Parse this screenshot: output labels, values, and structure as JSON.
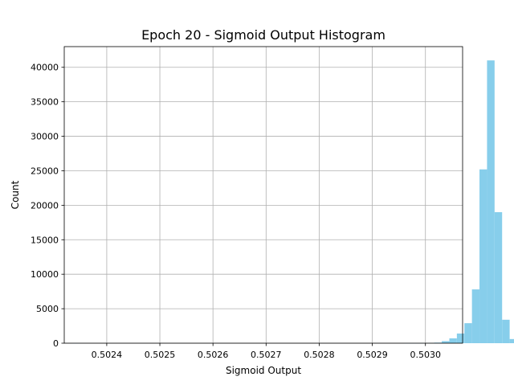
{
  "chart_data": {
    "type": "bar",
    "title": "Epoch 20 - Sigmoid Output Histogram",
    "xlabel": "Sigmoid Output",
    "ylabel": "Count",
    "xlim": [
      0.50232,
      0.50307
    ],
    "ylim": [
      0,
      43000
    ],
    "xticks": [
      0.5024,
      0.5025,
      0.5026,
      0.5027,
      0.5028,
      0.5029,
      0.503
    ],
    "xtick_labels": [
      "0.5024",
      "0.5025",
      "0.5026",
      "0.5027",
      "0.5028",
      "0.5029",
      "0.5030"
    ],
    "yticks": [
      0,
      5000,
      10000,
      15000,
      20000,
      25000,
      30000,
      35000,
      40000
    ],
    "ytick_labels": [
      "0",
      "5000",
      "10000",
      "15000",
      "20000",
      "25000",
      "30000",
      "35000",
      "40000"
    ],
    "grid": true,
    "bar_color": "#87ceeb",
    "bins": {
      "start": 0.502335,
      "width": 1.42e-05,
      "counts": [
        1,
        0,
        0,
        0,
        0,
        0,
        0,
        0,
        0,
        0,
        0,
        0,
        0,
        0,
        0,
        0,
        0,
        0,
        0,
        0,
        0,
        0,
        0,
        0,
        0,
        0,
        0,
        0,
        0,
        0,
        0,
        0,
        0,
        0,
        0,
        0,
        0,
        0,
        0,
        0,
        0,
        0,
        0,
        0,
        1,
        2,
        5,
        20,
        80,
        300,
        700,
        1400,
        2900,
        7800,
        25200,
        41000,
        19000,
        3400,
        600,
        150,
        30,
        5,
        1,
        1,
        0,
        0,
        0,
        0,
        0,
        0,
        0,
        1
      ]
    }
  }
}
